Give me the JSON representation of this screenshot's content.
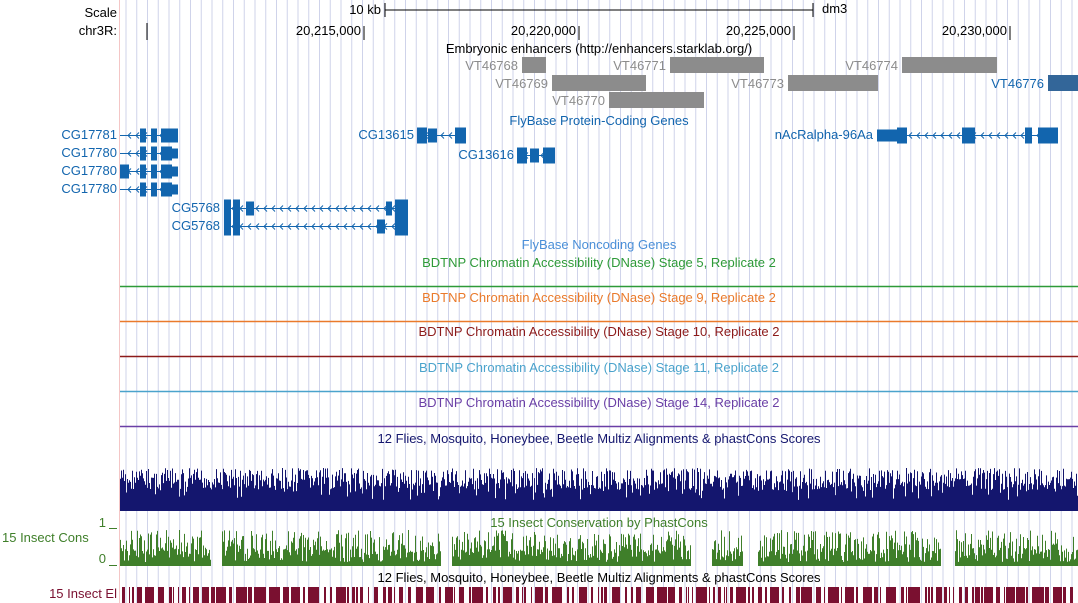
{
  "assembly": "dm3",
  "scale": {
    "label": "Scale",
    "bar_label": "10 kb"
  },
  "position": {
    "chrom_label": "chr3R:",
    "ticks": [
      "20,215,000",
      "20,220,000",
      "20,225,000",
      "20,230,000"
    ]
  },
  "colors": {
    "gene": "#1265ae",
    "gene_label": "#1265ae",
    "enhancer": "#8c8c8c",
    "enhancer_label": "#8c8c8c",
    "enhancer_highlight": "#336699",
    "grid": "#cfd3ea",
    "left_edge": "#f4c6c6",
    "stage5": "#2e9a38",
    "stage9": "#ea7a2b",
    "stage10": "#8c1a1a",
    "stage11": "#4aa3cc",
    "stage14": "#6a3fa6",
    "multiz": "#14166e",
    "phastcons": "#3f7f2a",
    "elements": "#7a1030",
    "noncoding_label": "#4a8fd8"
  },
  "tracks": {
    "enhancers": {
      "title": "Embryonic enhancers (http://enhancers.starklab.org/)",
      "items": [
        "VT46768",
        "VT46769",
        "VT46770",
        "VT46771",
        "VT46773",
        "VT46774",
        "VT46776"
      ]
    },
    "protein_coding": {
      "title": "FlyBase Protein-Coding Genes",
      "genes": [
        "CG17781",
        "CG17780",
        "CG17780",
        "CG17780",
        "CG5768",
        "CG5768",
        "CG13615",
        "CG13616",
        "nAcRalpha-96Aa"
      ]
    },
    "noncoding": {
      "title": "FlyBase Noncoding Genes"
    },
    "dnase": [
      {
        "title": "BDTNP Chromatin Accessibility (DNase) Stage 5, Replicate 2"
      },
      {
        "title": "BDTNP Chromatin Accessibility (DNase) Stage 9, Replicate 2"
      },
      {
        "title": "BDTNP Chromatin Accessibility (DNase) Stage 10, Replicate 2"
      },
      {
        "title": "BDTNP Chromatin Accessibility (DNase) Stage 11, Replicate 2"
      },
      {
        "title": "BDTNP Chromatin Accessibility (DNase) Stage 14, Replicate 2"
      }
    ],
    "multiz": {
      "title": "12 Flies, Mosquito, Honeybee, Beetle Multiz Alignments & phastCons Scores"
    },
    "phastcons": {
      "title": "15 Insect Conservation by PhastCons",
      "side_label": "15 Insect Cons",
      "axis_max": "1",
      "axis_min": "0"
    },
    "elements": {
      "title": "12 Flies, Mosquito, Honeybee, Beetle Multiz Alignments & phastCons Scores",
      "side_label": "15 Insect El"
    }
  }
}
